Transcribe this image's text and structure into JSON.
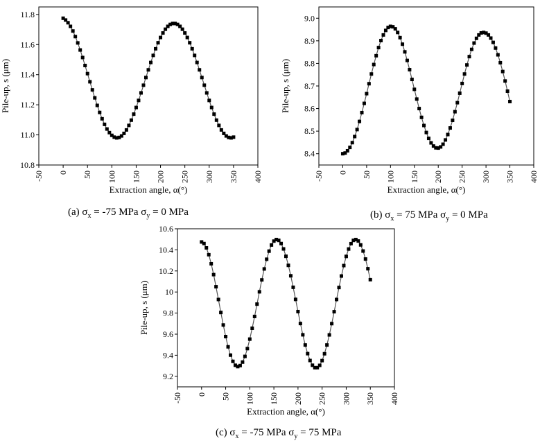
{
  "chart_data": [
    {
      "type": "line",
      "caption": {
        "prefix": "(a) σ",
        "sub1": "x",
        "mid": " = -75 MPa σ",
        "sub2": "y",
        "suffix": " = 0 MPa"
      },
      "xlabel": "Extraction angle, α(°)",
      "ylabel": "Pile-up, s (μm)",
      "xlim": [
        -50,
        400
      ],
      "ylim": [
        10.8,
        11.85
      ],
      "xticks": [
        "-50",
        "0",
        "50",
        "100",
        "150",
        "200",
        "250",
        "300",
        "350",
        "400"
      ],
      "yticks": [
        "10.8",
        "11.0",
        "11.2",
        "11.4",
        "11.6",
        "11.8"
      ],
      "x": [
        0,
        5,
        10,
        15,
        20,
        25,
        30,
        35,
        40,
        45,
        50,
        55,
        60,
        65,
        70,
        75,
        80,
        85,
        90,
        95,
        100,
        105,
        110,
        115,
        120,
        125,
        130,
        135,
        140,
        145,
        150,
        155,
        160,
        165,
        170,
        175,
        180,
        185,
        190,
        195,
        200,
        205,
        210,
        215,
        220,
        225,
        230,
        235,
        240,
        245,
        250,
        255,
        260,
        265,
        270,
        275,
        280,
        285,
        290,
        295,
        300,
        305,
        310,
        315,
        320,
        325,
        330,
        335,
        340,
        345,
        350
      ],
      "y": [
        11.775,
        11.763,
        11.745,
        11.721,
        11.69,
        11.653,
        11.611,
        11.564,
        11.514,
        11.461,
        11.407,
        11.353,
        11.299,
        11.246,
        11.196,
        11.149,
        11.107,
        11.07,
        11.039,
        11.015,
        10.997,
        10.985,
        10.98,
        10.983,
        10.993,
        11.01,
        11.033,
        11.063,
        11.098,
        11.138,
        11.182,
        11.229,
        11.279,
        11.33,
        11.381,
        11.432,
        11.481,
        11.528,
        11.572,
        11.612,
        11.647,
        11.677,
        11.702,
        11.721,
        11.734,
        11.74,
        11.74,
        11.734,
        11.721,
        11.702,
        11.677,
        11.647,
        11.612,
        11.572,
        11.528,
        11.481,
        11.432,
        11.381,
        11.33,
        11.279,
        11.229,
        11.182,
        11.138,
        11.098,
        11.063,
        11.033,
        11.01,
        10.993,
        10.983,
        10.98,
        10.985
      ],
      "marker": "square",
      "color": "#000000"
    },
    {
      "type": "line",
      "caption": {
        "prefix": "(b) σ",
        "sub1": "x",
        "mid": " = 75 MPa σ",
        "sub2": "y",
        "suffix": " = 0 MPa"
      },
      "xlabel": "Extraction angle, α(°)",
      "ylabel": "Pile-up, s (μm)",
      "xlim": [
        -50,
        400
      ],
      "ylim": [
        8.35,
        9.05
      ],
      "xticks": [
        "-50",
        "0",
        "50",
        "100",
        "150",
        "200",
        "250",
        "300",
        "350",
        "400"
      ],
      "yticks": [
        "8.4",
        "8.5",
        "8.6",
        "8.7",
        "8.8",
        "8.9",
        "9.0"
      ],
      "x": [
        0,
        5,
        10,
        15,
        20,
        25,
        30,
        35,
        40,
        45,
        50,
        55,
        60,
        65,
        70,
        75,
        80,
        85,
        90,
        95,
        100,
        105,
        110,
        115,
        120,
        125,
        130,
        135,
        140,
        145,
        150,
        155,
        160,
        165,
        170,
        175,
        180,
        185,
        190,
        195,
        200,
        205,
        210,
        215,
        220,
        225,
        230,
        235,
        240,
        245,
        250,
        255,
        260,
        265,
        270,
        275,
        280,
        285,
        290,
        295,
        300,
        305,
        310,
        315,
        320,
        325,
        330,
        335,
        340,
        345,
        350
      ],
      "y": [
        8.4,
        8.403,
        8.413,
        8.428,
        8.449,
        8.476,
        8.507,
        8.543,
        8.582,
        8.623,
        8.666,
        8.71,
        8.753,
        8.795,
        8.834,
        8.87,
        8.901,
        8.926,
        8.946,
        8.959,
        8.964,
        8.962,
        8.953,
        8.937,
        8.914,
        8.885,
        8.851,
        8.813,
        8.772,
        8.729,
        8.685,
        8.642,
        8.6,
        8.561,
        8.525,
        8.494,
        8.468,
        8.448,
        8.434,
        8.426,
        8.425,
        8.43,
        8.442,
        8.461,
        8.485,
        8.514,
        8.548,
        8.586,
        8.626,
        8.668,
        8.711,
        8.753,
        8.793,
        8.83,
        8.862,
        8.89,
        8.911,
        8.926,
        8.935,
        8.937,
        8.934,
        8.926,
        8.912,
        8.893,
        8.868,
        8.838,
        8.803,
        8.764,
        8.722,
        8.677,
        8.631
      ],
      "marker": "square",
      "color": "#000000"
    },
    {
      "type": "line",
      "caption": {
        "prefix": "(c) σ",
        "sub1": "x",
        "mid": " = -75 MPa σ",
        "sub2": "y",
        "suffix": " = 75 MPa"
      },
      "xlabel": "Extraction angle, α(°)",
      "ylabel": "Pile-up, s (μm)",
      "xlim": [
        -50,
        400
      ],
      "ylim": [
        9.1,
        10.6
      ],
      "xticks": [
        "-50",
        "0",
        "50",
        "100",
        "150",
        "200",
        "250",
        "300",
        "350",
        "400"
      ],
      "yticks": [
        "9.2",
        "9.4",
        "9.6",
        "9.8",
        "10",
        "10.2",
        "10.4",
        "10.6"
      ],
      "x": [
        0,
        5,
        10,
        15,
        20,
        25,
        30,
        35,
        40,
        45,
        50,
        55,
        60,
        65,
        70,
        75,
        80,
        85,
        90,
        95,
        100,
        105,
        110,
        115,
        120,
        125,
        130,
        135,
        140,
        145,
        150,
        155,
        160,
        165,
        170,
        175,
        180,
        185,
        190,
        195,
        200,
        205,
        210,
        215,
        220,
        225,
        230,
        235,
        240,
        245,
        250,
        255,
        260,
        265,
        270,
        275,
        280,
        285,
        290,
        295,
        300,
        305,
        310,
        315,
        320,
        325,
        330,
        335,
        340,
        345,
        350
      ],
      "y": [
        10.475,
        10.46,
        10.419,
        10.354,
        10.268,
        10.165,
        10.05,
        9.929,
        9.806,
        9.687,
        9.577,
        9.48,
        9.401,
        9.342,
        9.305,
        9.292,
        9.302,
        9.335,
        9.389,
        9.463,
        9.553,
        9.656,
        9.768,
        9.885,
        10.002,
        10.115,
        10.219,
        10.311,
        10.388,
        10.446,
        10.483,
        10.498,
        10.49,
        10.46,
        10.409,
        10.339,
        10.253,
        10.154,
        10.045,
        9.93,
        9.814,
        9.701,
        9.594,
        9.497,
        9.415,
        9.35,
        9.305,
        9.282,
        9.282,
        9.304,
        9.349,
        9.414,
        9.497,
        9.593,
        9.7,
        9.813,
        9.929,
        10.043,
        10.152,
        10.251,
        10.338,
        10.408,
        10.459,
        10.49,
        10.498,
        10.484,
        10.447,
        10.389,
        10.313,
        10.221,
        10.117
      ],
      "marker": "square",
      "color": "#000000"
    }
  ]
}
